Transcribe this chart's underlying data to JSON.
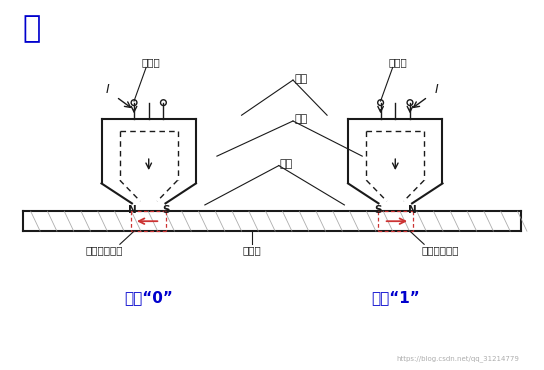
{
  "title": "写",
  "title_color": "#0000CD",
  "title_fontsize": 22,
  "bg_color": "#ffffff",
  "label_write_coil": "写线圈",
  "label_iron_core": "鐵芯",
  "label_mag_flux": "磁通",
  "label_mag_layer": "磁层",
  "label_local_unit": "局部磁化单元",
  "label_carrier": "载磁体",
  "label_write0": "写入“0”",
  "label_write1": "写入“1”",
  "label_current": "I",
  "watermark": "https://blog.csdn.net/qq_31214779",
  "head_color": "#1a1a1a",
  "red_arrow_color": "#cc3333",
  "label_color_blue": "#0000CD",
  "label_color_black": "#1a1a1a"
}
